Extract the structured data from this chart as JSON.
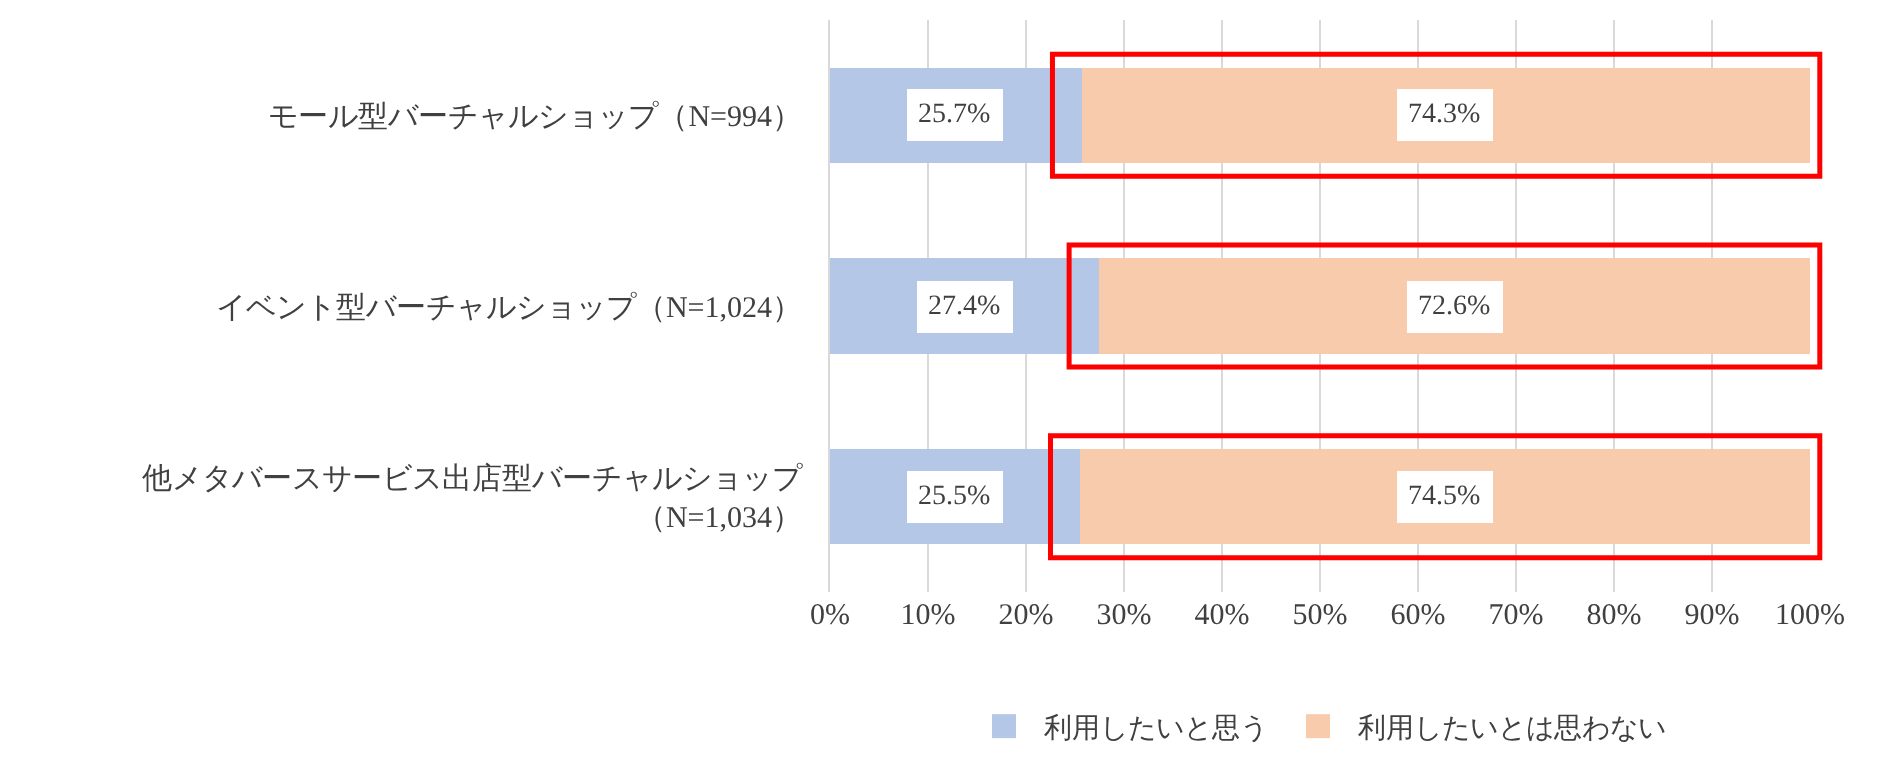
{
  "chart_data": {
    "type": "bar",
    "orientation": "horizontal",
    "stacked": true,
    "categories": [
      "モール型バーチャルショップ（N=994）",
      "イベント型バーチャルショップ（N=1,024）",
      "他メタバースサービス出店型バーチャルショップ（N=1,034）"
    ],
    "series": [
      {
        "name": "利用したいと思う",
        "color": "#b4c7e7",
        "values": [
          25.7,
          27.4,
          25.5
        ],
        "value_labels": [
          "25.7%",
          "27.4%",
          "25.5%"
        ]
      },
      {
        "name": "利用したいとは思わない",
        "color": "#f8cbad",
        "values": [
          74.3,
          72.6,
          74.5
        ],
        "value_labels": [
          "74.3%",
          "72.6%",
          "74.5%"
        ]
      }
    ],
    "xlim": [
      0,
      100
    ],
    "xticks": [
      {
        "value": 0,
        "label": "0%"
      },
      {
        "value": 10,
        "label": "10%"
      },
      {
        "value": 20,
        "label": "20%"
      },
      {
        "value": 30,
        "label": "30%"
      },
      {
        "value": 40,
        "label": "40%"
      },
      {
        "value": 50,
        "label": "50%"
      },
      {
        "value": 60,
        "label": "60%"
      },
      {
        "value": 70,
        "label": "70%"
      },
      {
        "value": 80,
        "label": "80%"
      },
      {
        "value": 90,
        "label": "90%"
      },
      {
        "value": 100,
        "label": "100%"
      }
    ],
    "grid": "x",
    "legend": "bottom"
  }
}
